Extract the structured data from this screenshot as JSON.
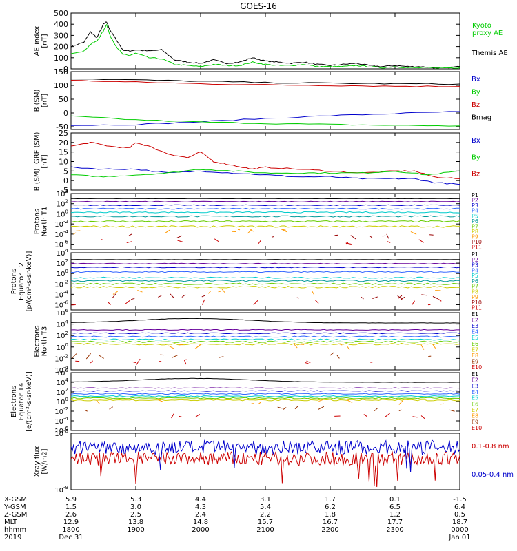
{
  "title": "GOES-16",
  "colors": {
    "black": "#000000",
    "green": "#00cc00",
    "blue": "#0000cc",
    "red": "#cc0000",
    "purple": "#660099",
    "violet": "#6633cc",
    "cyan": "#00cccc",
    "teal": "#009999",
    "lime": "#66cc00",
    "yellow": "#cccc00",
    "orange": "#ff9900",
    "brown": "#993300",
    "darkred": "#990000"
  },
  "chart_data": [
    {
      "id": "ae",
      "type": "line",
      "ylabel": [
        "AE index",
        "[nT]"
      ],
      "ylim": [
        0,
        500
      ],
      "yticks": [
        "0",
        "100",
        "200",
        "300",
        "400",
        "500"
      ],
      "legend": [
        {
          "label": "Kyoto",
          "color": "#00cc00"
        },
        {
          "label": "proxy AE",
          "color": "#00cc00"
        },
        {
          "label": "Themis AE",
          "color": "#000000"
        }
      ],
      "series": [
        {
          "name": "Themis AE",
          "color": "#000000",
          "x": [
            0,
            0.2,
            0.3,
            0.4,
            0.5,
            0.55,
            0.6,
            0.7,
            0.8,
            0.9,
            1.0,
            1.2,
            1.4,
            1.6,
            1.8,
            2.0,
            2.2,
            2.4,
            2.6,
            2.8,
            3.0,
            3.2,
            3.4,
            3.6,
            3.8,
            4.0,
            4.2,
            4.4,
            4.6,
            4.8,
            5.0,
            5.2,
            5.4,
            5.6,
            5.8,
            6.0
          ],
          "y": [
            200,
            240,
            330,
            280,
            400,
            420,
            350,
            260,
            170,
            160,
            170,
            160,
            170,
            80,
            60,
            50,
            80,
            50,
            60,
            100,
            70,
            60,
            50,
            60,
            40,
            30,
            40,
            50,
            30,
            20,
            30,
            20,
            20,
            10,
            10,
            20
          ]
        },
        {
          "name": "Kyoto proxy AE",
          "color": "#00cc00",
          "x": [
            0,
            0.2,
            0.3,
            0.4,
            0.5,
            0.55,
            0.6,
            0.7,
            0.8,
            0.9,
            1.0,
            1.2,
            1.4,
            1.6,
            1.8,
            2.0,
            2.2,
            2.4,
            2.6,
            2.8,
            3.0,
            3.2,
            3.4,
            3.6,
            3.8,
            4.0,
            4.2,
            4.4,
            4.6,
            4.8,
            5.0,
            5.2,
            5.4,
            5.6,
            5.8,
            6.0
          ],
          "y": [
            140,
            160,
            220,
            250,
            340,
            400,
            300,
            200,
            130,
            120,
            140,
            100,
            90,
            40,
            30,
            20,
            40,
            30,
            30,
            60,
            40,
            30,
            30,
            40,
            20,
            20,
            20,
            30,
            20,
            10,
            20,
            10,
            10,
            10,
            10,
            10
          ]
        }
      ]
    },
    {
      "id": "bsm",
      "type": "line",
      "ylabel": [
        "B (SM)",
        "[nT]"
      ],
      "ylim": [
        -60,
        150
      ],
      "yticks": [
        "-50",
        "0",
        "50",
        "100",
        "150"
      ],
      "ytick_values": [
        -50,
        0,
        50,
        100,
        150
      ],
      "legend": [
        {
          "label": "Bx",
          "color": "#0000cc"
        },
        {
          "label": "By",
          "color": "#00cc00"
        },
        {
          "label": "Bz",
          "color": "#cc0000"
        },
        {
          "label": "Bmag",
          "color": "#000000"
        }
      ],
      "series": [
        {
          "name": "Bx",
          "color": "#0000cc",
          "x": [
            0,
            1,
            2,
            3,
            4,
            5,
            6
          ],
          "y": [
            -45,
            -42,
            -32,
            -20,
            -10,
            -2,
            5
          ]
        },
        {
          "name": "By",
          "color": "#00cc00",
          "x": [
            0,
            1,
            2,
            3,
            4,
            5,
            6
          ],
          "y": [
            -12,
            -25,
            -33,
            -38,
            -42,
            -45,
            -47
          ]
        },
        {
          "name": "Bz",
          "color": "#cc0000",
          "x": [
            0,
            1,
            2,
            3,
            4,
            5,
            6
          ],
          "y": [
            118,
            112,
            106,
            102,
            100,
            97,
            96
          ]
        },
        {
          "name": "Bmag",
          "color": "#000000",
          "x": [
            0,
            1,
            2,
            3,
            4,
            5,
            6
          ],
          "y": [
            125,
            120,
            115,
            110,
            108,
            106,
            105
          ]
        }
      ]
    },
    {
      "id": "bdiff",
      "type": "line",
      "ylabel": [
        "B (SM)-IGRF (SM)",
        "[nT]"
      ],
      "ylim": [
        -5,
        25
      ],
      "yticks": [
        "-5",
        "0",
        "5",
        "10",
        "15",
        "20",
        "25"
      ],
      "legend": [
        {
          "label": "Bx",
          "color": "#0000cc"
        },
        {
          "label": "By",
          "color": "#00cc00"
        },
        {
          "label": "Bz",
          "color": "#cc0000"
        }
      ],
      "series": [
        {
          "name": "Bz",
          "color": "#cc0000",
          "x": [
            0,
            0.3,
            0.6,
            0.9,
            1.0,
            1.2,
            1.5,
            1.8,
            2.0,
            2.2,
            2.5,
            2.8,
            3.0,
            3.5,
            4.0,
            4.5,
            5.0,
            5.3,
            5.6,
            6.0
          ],
          "y": [
            18,
            20,
            18,
            17,
            20,
            18,
            14,
            12,
            15,
            10,
            8,
            6,
            7,
            6,
            5,
            4,
            5,
            5,
            2,
            1
          ]
        },
        {
          "name": "Bx",
          "color": "#0000cc",
          "x": [
            0,
            0.5,
            1.0,
            1.5,
            2.0,
            2.5,
            3.0,
            3.5,
            4.0,
            4.5,
            5.0,
            5.3,
            5.6,
            6.0
          ],
          "y": [
            7,
            6,
            6,
            4,
            5,
            4,
            3,
            2,
            2,
            1,
            1,
            1,
            -1,
            -2
          ]
        },
        {
          "name": "By",
          "color": "#00cc00",
          "x": [
            0,
            0.5,
            1.0,
            1.5,
            2.0,
            2.5,
            3.0,
            3.5,
            4.0,
            4.5,
            5.0,
            5.5,
            6.0
          ],
          "y": [
            3,
            2,
            3,
            4,
            6,
            5,
            4,
            4,
            4,
            4,
            5,
            3,
            5
          ]
        }
      ]
    },
    {
      "id": "p_north",
      "type": "line",
      "log": true,
      "ylabel": [
        "Protons",
        "North T1"
      ],
      "ylim_exp": [
        -7,
        4
      ],
      "yticks_exp": [
        -6,
        -4,
        -2,
        0,
        2,
        4
      ],
      "legend": [
        {
          "label": "P1",
          "color": "#000000"
        },
        {
          "label": "P2",
          "color": "#660099"
        },
        {
          "label": "P3",
          "color": "#0000cc"
        },
        {
          "label": "P4",
          "color": "#3366ff"
        },
        {
          "label": "P5",
          "color": "#00cccc"
        },
        {
          "label": "P6",
          "color": "#009999"
        },
        {
          "label": "P7",
          "color": "#66cc00"
        },
        {
          "label": "P8",
          "color": "#cccc00"
        },
        {
          "label": "P9",
          "color": "#ff9900"
        },
        {
          "label": "P10",
          "color": "#990000"
        },
        {
          "label": "P11",
          "color": "#cc0000"
        }
      ],
      "series_levels": [
        3.0,
        2.4,
        1.7,
        1.0,
        0.3,
        -0.5,
        -1.5,
        -2.5,
        -3.5,
        -4.5,
        -5.5
      ]
    },
    {
      "id": "p_equator",
      "type": "line",
      "log": true,
      "ylabel": [
        "Protons",
        "Equator T2",
        "[p/(cm²-s-sr-keV)]"
      ],
      "ylim_exp": [
        -7,
        4
      ],
      "yticks_exp": [
        -6,
        -4,
        -2,
        0,
        2,
        4
      ],
      "legend": [
        {
          "label": "P1",
          "color": "#000000"
        },
        {
          "label": "P2",
          "color": "#660099"
        },
        {
          "label": "P3",
          "color": "#0000cc"
        },
        {
          "label": "P4",
          "color": "#3366ff"
        },
        {
          "label": "P5",
          "color": "#00cccc"
        },
        {
          "label": "P6",
          "color": "#009999"
        },
        {
          "label": "P7",
          "color": "#66cc00"
        },
        {
          "label": "P8",
          "color": "#cccc00"
        },
        {
          "label": "P9",
          "color": "#ff9900"
        },
        {
          "label": "P10",
          "color": "#990000"
        },
        {
          "label": "P11",
          "color": "#cc0000"
        }
      ],
      "series_levels": [
        2.7,
        1.9,
        1.2,
        0.3,
        -0.8,
        -1.4,
        -2.0,
        -2.6,
        -3.5,
        -4.5,
        -5.5
      ]
    },
    {
      "id": "e_north",
      "type": "line",
      "log": true,
      "ylabel": [
        "Electrons",
        "North T3"
      ],
      "ylim_exp": [
        -4,
        6
      ],
      "yticks_exp": [
        -4,
        -2,
        0,
        2,
        4,
        6
      ],
      "legend": [
        {
          "label": "E1",
          "color": "#000000"
        },
        {
          "label": "E2",
          "color": "#660099"
        },
        {
          "label": "E3",
          "color": "#0000cc"
        },
        {
          "label": "E4",
          "color": "#3366ff"
        },
        {
          "label": "E5",
          "color": "#00cccc"
        },
        {
          "label": "E6",
          "color": "#66cc00"
        },
        {
          "label": "E7",
          "color": "#cccc00"
        },
        {
          "label": "E8",
          "color": "#ff9900"
        },
        {
          "label": "E9",
          "color": "#993300"
        },
        {
          "label": "E10",
          "color": "#cc0000"
        }
      ],
      "series_levels": [
        4.2,
        3.0,
        2.4,
        1.8,
        1.3,
        0.9,
        0.5,
        0.0,
        -1.5,
        -2.5
      ]
    },
    {
      "id": "e_equator",
      "type": "line",
      "log": true,
      "ylabel": [
        "Electrons",
        "Equator T4",
        "[e/(cm²-s-sr-keV)]"
      ],
      "ylim_exp": [
        -6,
        6
      ],
      "yticks_exp": [
        -6,
        -4,
        -2,
        0,
        2,
        4,
        6
      ],
      "legend": [
        {
          "label": "E1",
          "color": "#000000"
        },
        {
          "label": "E2",
          "color": "#660099"
        },
        {
          "label": "E3",
          "color": "#0000cc"
        },
        {
          "label": "E4",
          "color": "#3366ff"
        },
        {
          "label": "E5",
          "color": "#00cccc"
        },
        {
          "label": "E6",
          "color": "#66cc00"
        },
        {
          "label": "E7",
          "color": "#cccc00"
        },
        {
          "label": "E8",
          "color": "#ff9900"
        },
        {
          "label": "E9",
          "color": "#993300"
        },
        {
          "label": "E10",
          "color": "#cc0000"
        }
      ],
      "series_levels": [
        4.0,
        2.8,
        2.2,
        1.6,
        1.1,
        0.7,
        0.3,
        -0.1,
        -1.5,
        -3.0
      ]
    },
    {
      "id": "xray",
      "type": "line",
      "log": true,
      "ylabel": [
        "Xray flux",
        "[W/m2]"
      ],
      "ylim_exp": [
        -9,
        -8
      ],
      "yticks_exp": [
        -9,
        -8
      ],
      "legend": [
        {
          "label": "0.1-0.8 nm",
          "color": "#cc0000"
        },
        {
          "label": "0.05-0.4 nm",
          "color": "#0000cc"
        }
      ],
      "series_levels": [
        -8.45,
        -8.25
      ]
    }
  ],
  "ephemeris": {
    "rows": [
      {
        "label": "X-GSM",
        "values": [
          "5.9",
          "5.3",
          "4.4",
          "3.1",
          "1.7",
          "0.1",
          "-1.5"
        ]
      },
      {
        "label": "Y-GSM",
        "values": [
          "1.5",
          "3.0",
          "4.3",
          "5.4",
          "6.2",
          "6.5",
          "6.4"
        ]
      },
      {
        "label": "Z-GSM",
        "values": [
          "2.6",
          "2.5",
          "2.4",
          "2.2",
          "1.8",
          "1.2",
          "0.5"
        ]
      },
      {
        "label": "MLT",
        "values": [
          "12.9",
          "13.8",
          "14.8",
          "15.7",
          "16.7",
          "17.7",
          "18.7"
        ]
      },
      {
        "label": "hhmm",
        "values": [
          "1800",
          "1900",
          "2000",
          "2100",
          "2200",
          "2300",
          "0000"
        ]
      },
      {
        "label": "2019",
        "values": [
          "Dec 31",
          "",
          "",
          "",
          "",
          "",
          "Jan 01"
        ]
      }
    ]
  }
}
